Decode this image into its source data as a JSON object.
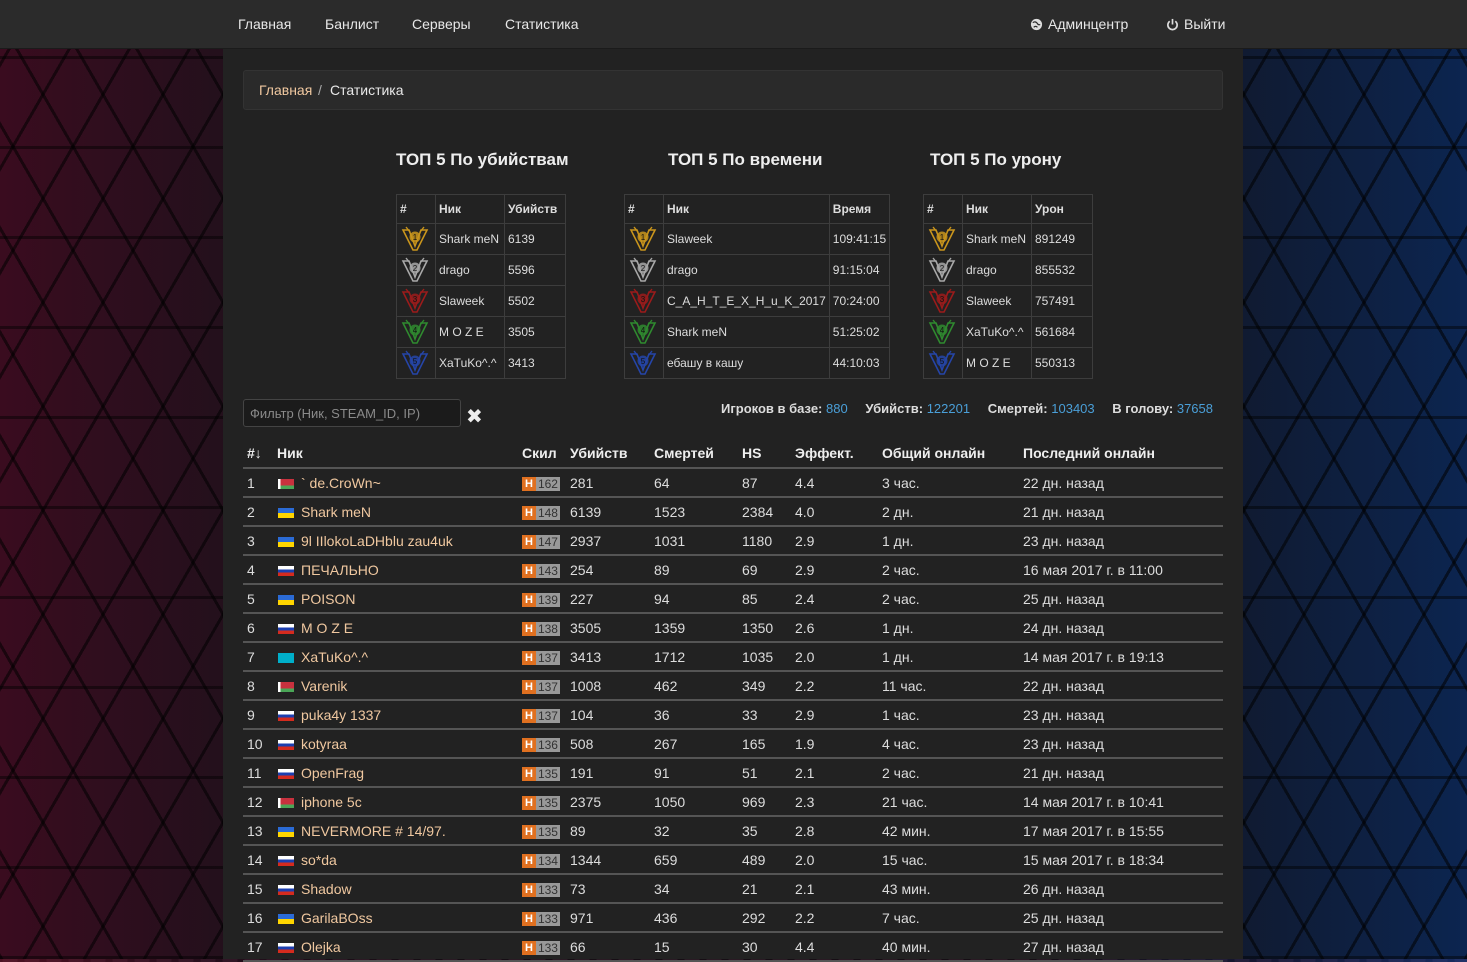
{
  "nav": {
    "home": "Главная",
    "banlist": "Банлист",
    "servers": "Серверы",
    "stats": "Статистика",
    "admin": "Админцентр",
    "logout": "Выйти"
  },
  "breadcrumb": {
    "home": "Главная",
    "separator": "/",
    "current": "Статистика"
  },
  "top_kills": {
    "title": "ТОП 5 По убийствам",
    "headers": [
      "#",
      "Ник",
      "Убийств"
    ],
    "rows": [
      {
        "rank": "1",
        "nick": "Shark meN",
        "value": "6139"
      },
      {
        "rank": "2",
        "nick": "drago",
        "value": "5596"
      },
      {
        "rank": "3",
        "nick": "Slaweek",
        "value": "5502"
      },
      {
        "rank": "4",
        "nick": "M O Z E",
        "value": "3505"
      },
      {
        "rank": "5",
        "nick": "XaTuKo^.^",
        "value": "3413"
      }
    ]
  },
  "top_time": {
    "title": "ТОП 5 По времени",
    "headers": [
      "#",
      "Ник",
      "Время"
    ],
    "rows": [
      {
        "rank": "1",
        "nick": "Slaweek",
        "value": "109:41:15"
      },
      {
        "rank": "2",
        "nick": "drago",
        "value": "91:15:04"
      },
      {
        "rank": "3",
        "nick": "C_A_H_T_E_X_H_u_K_2017",
        "value": "70:24:00"
      },
      {
        "rank": "4",
        "nick": "Shark meN",
        "value": "51:25:02"
      },
      {
        "rank": "5",
        "nick": "ебашу в кашу",
        "value": "44:10:03"
      }
    ]
  },
  "top_damage": {
    "title": "ТОП 5 По урону",
    "headers": [
      "#",
      "Ник",
      "Урон"
    ],
    "rows": [
      {
        "rank": "1",
        "nick": "Shark meN",
        "value": "891249"
      },
      {
        "rank": "2",
        "nick": "drago",
        "value": "855532"
      },
      {
        "rank": "3",
        "nick": "Slaweek",
        "value": "757491"
      },
      {
        "rank": "4",
        "nick": "XaTuKo^.^",
        "value": "561684"
      },
      {
        "rank": "5",
        "nick": "M O Z E",
        "value": "550313"
      }
    ]
  },
  "medal_colors": [
    "#c9951c",
    "#a8a8a8",
    "#9b1b1b",
    "#2f8a2f",
    "#2545a8"
  ],
  "filter": {
    "placeholder": "Фильтр (Ник, STEAM_ID, IP)"
  },
  "summary": {
    "players_label": "Игроков в базе:",
    "players": "880",
    "kills_label": "Убийств:",
    "kills": "122201",
    "deaths_label": "Смертей:",
    "deaths": "103403",
    "hs_label": "В голову:",
    "hs": "37658"
  },
  "table": {
    "headers": {
      "num": "#↓",
      "nick": "Ник",
      "skill": "Скил",
      "kills": "Убийств",
      "deaths": "Смертей",
      "hs": "HS",
      "eff": "Эффект.",
      "online": "Общий онлайн",
      "last": "Последний онлайн"
    },
    "skill_letter": "H",
    "rows": [
      {
        "n": "1",
        "flag": "by",
        "nick": "` de.CroWn~",
        "skill": "162",
        "kills": "281",
        "deaths": "64",
        "hs": "87",
        "eff": "4.4",
        "online": "3 час.",
        "last": "22 дн. назад"
      },
      {
        "n": "2",
        "flag": "ua",
        "nick": "Shark meN",
        "skill": "148",
        "kills": "6139",
        "deaths": "1523",
        "hs": "2384",
        "eff": "4.0",
        "online": "2 дн.",
        "last": "21 дн. назад"
      },
      {
        "n": "3",
        "flag": "ua",
        "nick": "9l IIlokoLaDHblu zau4uk",
        "skill": "147",
        "kills": "2937",
        "deaths": "1031",
        "hs": "1180",
        "eff": "2.9",
        "online": "1 дн.",
        "last": "23 дн. назад"
      },
      {
        "n": "4",
        "flag": "ru",
        "nick": "ПЕЧАЛЬНО",
        "skill": "143",
        "kills": "254",
        "deaths": "89",
        "hs": "69",
        "eff": "2.9",
        "online": "2 час.",
        "last": "16 мая 2017 г. в 11:00"
      },
      {
        "n": "5",
        "flag": "ua",
        "nick": "POISON",
        "skill": "139",
        "kills": "227",
        "deaths": "94",
        "hs": "85",
        "eff": "2.4",
        "online": "2 час.",
        "last": "25 дн. назад"
      },
      {
        "n": "6",
        "flag": "ru",
        "nick": "M O Z E",
        "skill": "138",
        "kills": "3505",
        "deaths": "1359",
        "hs": "1350",
        "eff": "2.6",
        "online": "1 дн.",
        "last": "24 дн. назад"
      },
      {
        "n": "7",
        "flag": "kz",
        "nick": "XaTuKo^.^",
        "skill": "137",
        "kills": "3413",
        "deaths": "1712",
        "hs": "1035",
        "eff": "2.0",
        "online": "1 дн.",
        "last": "14 мая 2017 г. в 19:13"
      },
      {
        "n": "8",
        "flag": "by",
        "nick": "Varenik",
        "skill": "137",
        "kills": "1008",
        "deaths": "462",
        "hs": "349",
        "eff": "2.2",
        "online": "11 час.",
        "last": "22 дн. назад"
      },
      {
        "n": "9",
        "flag": "ru",
        "nick": "puka4y 1337",
        "skill": "137",
        "kills": "104",
        "deaths": "36",
        "hs": "33",
        "eff": "2.9",
        "online": "1 час.",
        "last": "23 дн. назад"
      },
      {
        "n": "10",
        "flag": "ru",
        "nick": "kotyraa",
        "skill": "136",
        "kills": "508",
        "deaths": "267",
        "hs": "165",
        "eff": "1.9",
        "online": "4 час.",
        "last": "23 дн. назад"
      },
      {
        "n": "11",
        "flag": "ru",
        "nick": "OpenFrag",
        "skill": "135",
        "kills": "191",
        "deaths": "91",
        "hs": "51",
        "eff": "2.1",
        "online": "2 час.",
        "last": "21 дн. назад"
      },
      {
        "n": "12",
        "flag": "by",
        "nick": "iphone 5c",
        "skill": "135",
        "kills": "2375",
        "deaths": "1050",
        "hs": "969",
        "eff": "2.3",
        "online": "21 час.",
        "last": "14 мая 2017 г. в 10:41"
      },
      {
        "n": "13",
        "flag": "ua",
        "nick": "NEVERMORE # 14/97.",
        "skill": "135",
        "kills": "89",
        "deaths": "32",
        "hs": "35",
        "eff": "2.8",
        "online": "42 мин.",
        "last": "17 мая 2017 г. в 15:55"
      },
      {
        "n": "14",
        "flag": "ru",
        "nick": "so*da",
        "skill": "134",
        "kills": "1344",
        "deaths": "659",
        "hs": "489",
        "eff": "2.0",
        "online": "15 час.",
        "last": "15 мая 2017 г. в 18:34"
      },
      {
        "n": "15",
        "flag": "ru",
        "nick": "Shadow",
        "skill": "133",
        "kills": "73",
        "deaths": "34",
        "hs": "21",
        "eff": "2.1",
        "online": "43 мин.",
        "last": "26 дн. назад"
      },
      {
        "n": "16",
        "flag": "ua",
        "nick": "GarilaBOss",
        "skill": "133",
        "kills": "971",
        "deaths": "436",
        "hs": "292",
        "eff": "2.2",
        "online": "7 час.",
        "last": "25 дн. назад"
      },
      {
        "n": "17",
        "flag": "ru",
        "nick": "Olejka",
        "skill": "133",
        "kills": "66",
        "deaths": "15",
        "hs": "30",
        "eff": "4.4",
        "online": "40 мин.",
        "last": "27 дн. назад"
      }
    ]
  }
}
